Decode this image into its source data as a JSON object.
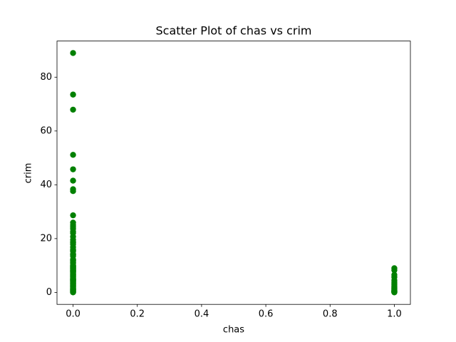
{
  "chart_data": {
    "type": "scatter",
    "title": "Scatter Plot of chas vs crim",
    "x_label": "chas",
    "y_label": "crim",
    "color": "#008000",
    "x": [
      0,
      0,
      0,
      0,
      0,
      0,
      0,
      0,
      0,
      0,
      0,
      0,
      0,
      0,
      0,
      0,
      0,
      0,
      0,
      0,
      0,
      0,
      0,
      0,
      0,
      0,
      0,
      0,
      0,
      0,
      0,
      0,
      0,
      0,
      0,
      0,
      0,
      0,
      0,
      0,
      0,
      0,
      0,
      0,
      0,
      0,
      0,
      0,
      0,
      0,
      0,
      0,
      0,
      0,
      0,
      0,
      0,
      0,
      0,
      0,
      0,
      0,
      0,
      0,
      0,
      0,
      0,
      0,
      0,
      0,
      0,
      0,
      0,
      0,
      0,
      0,
      0,
      0,
      0,
      0,
      0,
      0,
      0,
      0,
      0,
      0,
      0,
      0,
      0,
      0,
      1,
      1,
      1,
      1,
      1,
      1,
      1,
      1,
      1,
      1,
      1,
      1,
      1,
      1,
      1,
      1,
      1,
      1,
      1,
      1
    ],
    "values": [
      88.98,
      73.53,
      67.92,
      51.14,
      45.75,
      41.53,
      38.35,
      37.66,
      28.66,
      25.95,
      25.05,
      24.39,
      23.65,
      22.6,
      22.05,
      20.72,
      19.61,
      18.81,
      18.5,
      17.87,
      16.81,
      15.87,
      15.58,
      15.29,
      14.33,
      14.05,
      13.91,
      13.52,
      12.25,
      12.05,
      11.95,
      11.58,
      11.11,
      10.83,
      10.06,
      9.92,
      9.72,
      9.59,
      9.39,
      9.23,
      8.98,
      8.79,
      8.72,
      8.49,
      8.27,
      8.15,
      7.99,
      7.84,
      7.67,
      7.4,
      7.05,
      6.8,
      6.65,
      6.44,
      6.29,
      5.87,
      5.82,
      5.69,
      5.29,
      5.09,
      4.87,
      4.83,
      4.75,
      4.55,
      4.42,
      4.22,
      4.1,
      3.85,
      3.69,
      3.47,
      3.32,
      3.16,
      2.92,
      2.73,
      2.45,
      2.31,
      2.15,
      1.83,
      1.63,
      1.42,
      1.23,
      1.13,
      1.0,
      0.85,
      0.7,
      0.5,
      0.3,
      0.2,
      0.1,
      0.02,
      8.98,
      8.27,
      6.54,
      5.67,
      4.55,
      3.85,
      3.32,
      2.82,
      2.24,
      1.83,
      1.51,
      1.27,
      0.89,
      0.65,
      0.5,
      0.38,
      0.25,
      0.17,
      0.08,
      0.04
    ],
    "xlim": [
      -0.05,
      1.05
    ],
    "ylim": [
      -4.45,
      93.43
    ],
    "xticks": [
      {
        "value": 0,
        "label": "0.0"
      },
      0.2,
      0.4,
      0.6,
      0.8,
      {
        "value": 1,
        "label": "1.0"
      }
    ],
    "yticks": [
      0,
      20,
      40,
      60,
      80
    ],
    "grid": false
  }
}
